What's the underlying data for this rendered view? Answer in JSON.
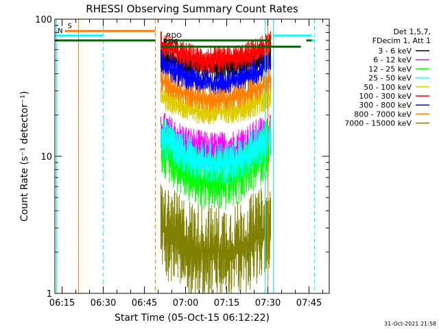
{
  "chart_data": {
    "type": "line",
    "title": "RHESSI Observing Summary Count Rates",
    "xlabel": "Start Time (05-Oct-15 06:12:22)",
    "ylabel": "Count Rate (s⁻¹ detector⁻¹)",
    "x_ticks": [
      "06:15",
      "06:30",
      "06:45",
      "07:00",
      "07:15",
      "07:30",
      "07:45"
    ],
    "y_ticks": [
      "1",
      "10",
      "100"
    ],
    "xlim": [
      "06:12:22",
      "07:52:22"
    ],
    "ylim": [
      1,
      100
    ],
    "yscale": "log",
    "legend_header": [
      "Det 1,5,7,",
      "FDecim 1, Att 1"
    ],
    "footer": "31-Oct-2021 21:58",
    "observation_window": {
      "start": "06:51",
      "end": "07:31"
    },
    "series": [
      {
        "name": "3 - 6 keV",
        "color": "#000000",
        "edge": 52,
        "mid": 45,
        "noise": 0.1
      },
      {
        "name": "6 - 12 keV",
        "color": "#ff00ff",
        "edge": 16,
        "mid": 11,
        "noise": 0.14
      },
      {
        "name": "12 - 25 keV",
        "color": "#00ff00",
        "edge": 12,
        "mid": 6.5,
        "noise": 0.22
      },
      {
        "name": "25 - 50 keV",
        "color": "#00ffff",
        "edge": 14,
        "mid": 8.8,
        "noise": 0.16
      },
      {
        "name": "50 - 100 keV",
        "color": "#ddcc00",
        "edge": 28,
        "mid": 21,
        "noise": 0.1
      },
      {
        "name": "100 - 300 keV",
        "color": "#ff0000",
        "edge": 66,
        "mid": 50,
        "noise": 0.1
      },
      {
        "name": "300 - 800 keV",
        "color": "#0000ff",
        "edge": 48,
        "mid": 34,
        "noise": 0.1
      },
      {
        "name": "800 - 7000 keV",
        "color": "#ff8000",
        "edge": 36,
        "mid": 26,
        "noise": 0.09
      },
      {
        "name": "7000 - 15000 keV",
        "color": "#808000",
        "edge": 3.0,
        "mid": 2.0,
        "noise": 0.35
      }
    ],
    "annotations": [
      {
        "label": "S",
        "color": "#ff8000",
        "kind": "bar",
        "start": "06:16",
        "end": "06:49",
        "y": 82
      },
      {
        "label": "N",
        "color": "#00ffff",
        "kind": "bar",
        "start": "06:12:22",
        "end": "06:30",
        "y": 76
      },
      {
        "label": "N",
        "color": "#00ffff",
        "kind": "bar",
        "start": "07:32",
        "end": "07:46",
        "y": 76,
        "hide_label": true
      },
      {
        "label": "",
        "color": "#00ffff",
        "kind": "bar",
        "start": "07:45",
        "end": "07:47",
        "y": 70
      },
      {
        "label": "RDO",
        "color": "#006400",
        "kind": "bar",
        "start": "06:52",
        "end": "07:31",
        "y": 70
      },
      {
        "label": "RD6",
        "color": "#006400",
        "kind": "bar",
        "start": "06:51",
        "end": "07:42",
        "y": 63
      },
      {
        "label": "",
        "color": "#006400",
        "kind": "bar",
        "start": "06:12:22",
        "end": "06:49",
        "y": 70
      },
      {
        "label": "",
        "color": "#006400",
        "kind": "bar",
        "start": "07:44",
        "end": "07:46",
        "y": 70
      }
    ],
    "vlines": [
      {
        "time": "06:13",
        "color": "#00ffff",
        "dashed": false
      },
      {
        "time": "06:21",
        "color": "#ff8000",
        "dashed": false
      },
      {
        "time": "06:30",
        "color": "#00ffff",
        "dashed": true
      },
      {
        "time": "06:49",
        "color": "#ff8000",
        "dashed": true
      },
      {
        "time": "07:29",
        "color": "#00ffff",
        "dashed": false
      },
      {
        "time": "07:30",
        "color": "#ff8000",
        "dashed": false
      },
      {
        "time": "07:32",
        "color": "#00ffff",
        "dashed": false
      },
      {
        "time": "07:47",
        "color": "#00ffff",
        "dashed": true
      }
    ]
  }
}
